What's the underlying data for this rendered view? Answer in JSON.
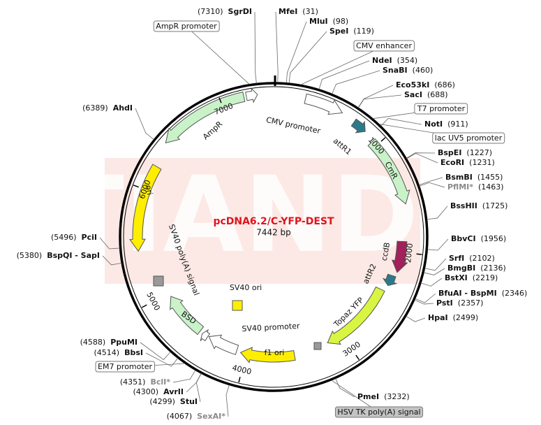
{
  "title": "pcDNA6.2/C-YFP-DEST",
  "size": {
    "value": 7442,
    "label": "7442 bp"
  },
  "watermark": "TIANDZ",
  "ticks": [
    1000,
    2000,
    3000,
    4000,
    5000,
    6000,
    7000
  ],
  "enzymes": [
    {
      "name": "SgrDI",
      "position": {
        "value": 7310,
        "label": "(7310)"
      }
    },
    {
      "name": "MfeI",
      "position": {
        "value": 31,
        "label": "(31)"
      }
    },
    {
      "name": "MluI",
      "position": {
        "value": 98,
        "label": "(98)"
      }
    },
    {
      "name": "SpeI",
      "position": {
        "value": 119,
        "label": "(119)"
      }
    },
    {
      "name": "NdeI",
      "position": {
        "value": 354,
        "label": "(354)"
      }
    },
    {
      "name": "SnaBI",
      "position": {
        "value": 460,
        "label": "(460)"
      }
    },
    {
      "name": "Eco53kI",
      "position": {
        "value": 686,
        "label": "(686)"
      }
    },
    {
      "name": "SacI",
      "position": {
        "value": 688,
        "label": "(688)"
      }
    },
    {
      "name": "NotI",
      "position": {
        "value": 911,
        "label": "(911)"
      }
    },
    {
      "name": "BspEI",
      "position": {
        "value": 1227,
        "label": "(1227)"
      }
    },
    {
      "name": "EcoRI",
      "position": {
        "value": 1231,
        "label": "(1231)"
      }
    },
    {
      "name": "BsmBI",
      "position": {
        "value": 1455,
        "label": "(1455)"
      }
    },
    {
      "name": "PflMI*",
      "position": {
        "value": 1463,
        "label": "(1463)"
      },
      "color": "#8a8a8a"
    },
    {
      "name": "BssHII",
      "position": {
        "value": 1725,
        "label": "(1725)"
      }
    },
    {
      "name": "BbvCI",
      "position": {
        "value": 1956,
        "label": "(1956)"
      }
    },
    {
      "name": "SrfI",
      "position": {
        "value": 2102,
        "label": "(2102)"
      }
    },
    {
      "name": "BmgBI",
      "position": {
        "value": 2136,
        "label": "(2136)"
      }
    },
    {
      "name": "BstXI",
      "position": {
        "value": 2219,
        "label": "(2219)"
      }
    },
    {
      "name": "BfuAI - BspMI",
      "position": {
        "value": 2346,
        "label": "(2346)"
      }
    },
    {
      "name": "PstI",
      "position": {
        "value": 2357,
        "label": "(2357)"
      }
    },
    {
      "name": "HpaI",
      "position": {
        "value": 2499,
        "label": "(2499)"
      }
    },
    {
      "name": "PmeI",
      "position": {
        "value": 3232,
        "label": "(3232)"
      }
    },
    {
      "name": "SexAI*",
      "position": {
        "value": 4067,
        "label": "(4067)"
      },
      "color": "#8a8a8a"
    },
    {
      "name": "StuI",
      "position": {
        "value": 4299,
        "label": "(4299)"
      }
    },
    {
      "name": "AvrII",
      "position": {
        "value": 4300,
        "label": "(4300)"
      }
    },
    {
      "name": "BclI*",
      "position": {
        "value": 4351,
        "label": "(4351)"
      },
      "color": "#8a8a8a"
    },
    {
      "name": "BbsI",
      "position": {
        "value": 4514,
        "label": "(4514)"
      }
    },
    {
      "name": "PpuMI",
      "position": {
        "value": 4588,
        "label": "(4588)"
      }
    },
    {
      "name": "BspQI - SapI",
      "position": {
        "value": 5380,
        "label": "(5380)"
      }
    },
    {
      "name": "PciI",
      "position": {
        "value": 5496,
        "label": "(5496)"
      }
    },
    {
      "name": "AhdI",
      "position": {
        "value": 6389,
        "label": "(6389)"
      }
    }
  ],
  "features": [
    "AmpR",
    "CMV promoter",
    "attR1",
    "CmR",
    "ccdB",
    "attR2",
    "Topaz YFP",
    "f1 ori",
    "SV40 promoter",
    "BSD",
    "ori",
    "SV40 ori",
    "SV40 poly(A) signal"
  ],
  "feature_boxes": [
    "AmpR promoter",
    "CMV enhancer",
    "T7 promoter",
    "lac UV5 promoter",
    "EM7 promoter",
    "HSV TK poly(A) signal"
  ]
}
